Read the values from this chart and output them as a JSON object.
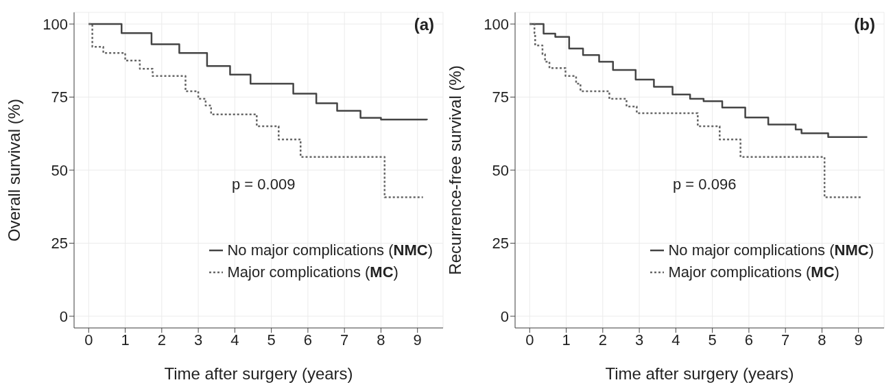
{
  "chart_data": [
    {
      "type": "step",
      "title": "(a)",
      "xlabel": "Time after surgery (years)",
      "ylabel": "Overall survival (%)",
      "annotations": [
        "p = 0.009"
      ],
      "xlim": [
        -0.4,
        9.7
      ],
      "xticks": [
        0,
        1,
        2,
        3,
        4,
        5,
        6,
        7,
        8,
        9
      ],
      "ylim": [
        -4,
        104
      ],
      "yticks": [
        0,
        25,
        50,
        75,
        100
      ],
      "grid": true,
      "legend": "bottom right",
      "marker": "none",
      "series": [
        {
          "name": "No major complications (NMC)",
          "color": "#444444",
          "line_style": "solid",
          "x": [
            0,
            0.9,
            1.72,
            2.48,
            3.24,
            3.87,
            4.43,
            4.72,
            5.6,
            6.23,
            6.8,
            7.44,
            8.0,
            9.26
          ],
          "values": [
            100,
            96.9,
            93.1,
            90.1,
            85.6,
            82.7,
            79.6,
            79.6,
            76.2,
            72.9,
            70.3,
            67.9,
            67.3,
            67.2
          ]
        },
        {
          "name": "Major complications (MC)",
          "color": "#666666",
          "line_style": "dotted",
          "x": [
            0,
            0.1,
            0.4,
            1.0,
            1.4,
            1.75,
            2.65,
            3.0,
            3.2,
            3.35,
            4.6,
            5.2,
            5.8,
            8.1,
            9.15
          ],
          "values": [
            100,
            92.2,
            90.1,
            87.5,
            84.7,
            82.2,
            77,
            74.4,
            72.1,
            69.1,
            65,
            60.5,
            54.5,
            40.7,
            40.7
          ]
        }
      ]
    },
    {
      "type": "step",
      "title": "(b)",
      "xlabel": "Time after surgery (years)",
      "ylabel": "Recurrence-free survival (%)",
      "annotations": [
        "p = 0.096"
      ],
      "xlim": [
        -0.4,
        9.7
      ],
      "xticks": [
        0,
        1,
        2,
        3,
        4,
        5,
        6,
        7,
        8,
        9
      ],
      "ylim": [
        -4,
        104
      ],
      "yticks": [
        0,
        25,
        50,
        75,
        100
      ],
      "grid": true,
      "legend": "bottom right",
      "marker": "none",
      "series": [
        {
          "name": "No major complications (NMC)",
          "color": "#444444",
          "line_style": "solid",
          "x": [
            0,
            0.38,
            0.7,
            1.08,
            1.46,
            1.9,
            2.28,
            2.46,
            2.9,
            3.4,
            3.91,
            4.39,
            4.76,
            5.27,
            5.9,
            6.53,
            7.28,
            7.44,
            7.98,
            8.17,
            9.24
          ],
          "values": [
            100,
            96.7,
            95.6,
            91.6,
            89.4,
            87.1,
            84.3,
            84.3,
            81,
            78.5,
            75.9,
            74.4,
            73.6,
            71.4,
            68,
            65.6,
            63.9,
            62.6,
            62.6,
            61.3,
            61.3
          ]
        },
        {
          "name": "Major complications (MC)",
          "color": "#666666",
          "line_style": "dotted",
          "x": [
            0,
            0.13,
            0.15,
            0.35,
            0.42,
            0.54,
            0.98,
            1.27,
            1.39,
            2.18,
            2.65,
            2.93,
            4.6,
            5.2,
            5.77,
            8.07,
            9.11
          ],
          "values": [
            100,
            96.9,
            92.7,
            89.7,
            87.1,
            84.9,
            82.2,
            79.6,
            77,
            74.4,
            71.8,
            69.5,
            65,
            60.5,
            54.5,
            40.7,
            40.7
          ]
        }
      ]
    }
  ]
}
